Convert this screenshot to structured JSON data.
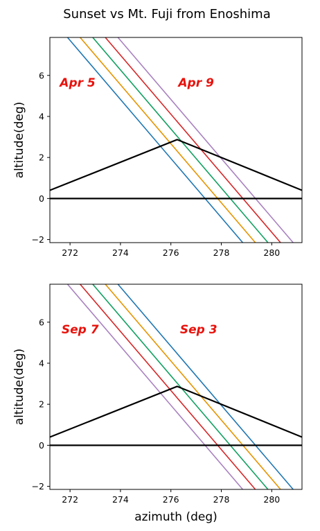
{
  "suptitle": "Sunset vs Mt. Fuji from Enoshima",
  "colors": {
    "text": "#000000",
    "annotation": "#e8120c",
    "series": [
      "#1f77b4",
      "#e69500",
      "#10a060",
      "#d62728",
      "#a982c0"
    ]
  },
  "chart_data": [
    {
      "type": "line",
      "xlim": [
        271.2,
        281.2
      ],
      "ylim": [
        -2.15,
        7.85
      ],
      "xticks": [
        272,
        274,
        276,
        278,
        280
      ],
      "yticks": [
        -2,
        0,
        2,
        4,
        6
      ],
      "xlabel": "",
      "ylabel": "altitude(deg)",
      "grid": false,
      "annotations": [
        {
          "text": "Apr 5",
          "x": 272.3,
          "y": 5.45
        },
        {
          "text": "Apr 9",
          "x": 277.0,
          "y": 5.45
        }
      ],
      "mountain": {
        "x": [
          271.2,
          276.25,
          281.2
        ],
        "y": [
          0.4,
          2.87,
          0.4
        ]
      },
      "horizon": {
        "x": [
          271.2,
          281.2
        ],
        "y": [
          0,
          0
        ]
      },
      "series": [
        {
          "x": [
            271.9,
            278.85
          ],
          "y": [
            7.85,
            -2.15
          ]
        },
        {
          "x": [
            272.4,
            279.35
          ],
          "y": [
            7.85,
            -2.15
          ]
        },
        {
          "x": [
            272.9,
            279.85
          ],
          "y": [
            7.85,
            -2.15
          ]
        },
        {
          "x": [
            273.4,
            280.35
          ],
          "y": [
            7.85,
            -2.15
          ]
        },
        {
          "x": [
            273.9,
            280.85
          ],
          "y": [
            7.85,
            -2.15
          ]
        }
      ]
    },
    {
      "type": "line",
      "xlim": [
        271.2,
        281.2
      ],
      "ylim": [
        -2.15,
        7.85
      ],
      "xticks": [
        272,
        274,
        276,
        278,
        280
      ],
      "yticks": [
        -2,
        0,
        2,
        4,
        6
      ],
      "xlabel": "azimuth (deg)",
      "ylabel": "altitude(deg)",
      "grid": false,
      "annotations": [
        {
          "text": "Sep 7",
          "x": 272.4,
          "y": 5.45
        },
        {
          "text": "Sep 3",
          "x": 277.1,
          "y": 5.45
        }
      ],
      "mountain": {
        "x": [
          271.2,
          276.25,
          281.2
        ],
        "y": [
          0.4,
          2.87,
          0.4
        ]
      },
      "horizon": {
        "x": [
          271.2,
          281.2
        ],
        "y": [
          0,
          0
        ]
      },
      "series": [
        {
          "x": [
            273.9,
            280.85
          ],
          "y": [
            7.85,
            -2.15
          ]
        },
        {
          "x": [
            273.4,
            280.35
          ],
          "y": [
            7.85,
            -2.15
          ]
        },
        {
          "x": [
            272.9,
            279.85
          ],
          "y": [
            7.85,
            -2.15
          ]
        },
        {
          "x": [
            272.4,
            279.35
          ],
          "y": [
            7.85,
            -2.15
          ]
        },
        {
          "x": [
            271.9,
            278.85
          ],
          "y": [
            7.85,
            -2.15
          ]
        }
      ]
    }
  ]
}
